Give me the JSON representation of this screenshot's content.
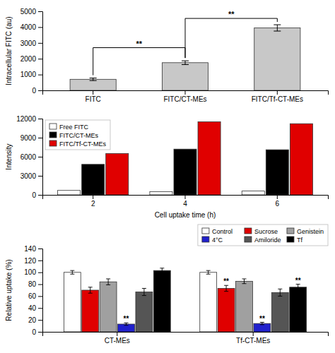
{
  "chart_data": [
    {
      "type": "bar",
      "categories": [
        "FITC",
        "FITC/CT-MEs",
        "FITC/Tf-CT-MEs"
      ],
      "values": [
        700,
        1750,
        3950
      ],
      "errors": [
        80,
        120,
        200
      ],
      "color": "#c8c8c8",
      "ylabel": "Intracellular FITC (au)",
      "ylim": [
        0,
        5000
      ],
      "yticks": [
        0,
        1000,
        2000,
        3000,
        4000,
        5000
      ],
      "grid": false,
      "annotations": [
        {
          "text": "**",
          "from": "FITC",
          "to": "FITC/CT-MEs",
          "y": 2700
        },
        {
          "text": "**",
          "from": "FITC/CT-MEs",
          "to": "FITC/Tf-CT-MEs",
          "y": 4550
        }
      ]
    },
    {
      "type": "bar",
      "categories": [
        "2",
        "4",
        "6"
      ],
      "xlabel": "Cell uptake time (h)",
      "ylabel": "Intensity",
      "series": [
        {
          "name": "Free FITC",
          "color": "#ffffff",
          "values": [
            700,
            500,
            600
          ]
        },
        {
          "name": "FITC/CT-MEs",
          "color": "#000000",
          "values": [
            4800,
            7200,
            7100
          ]
        },
        {
          "name": "FITC/Tf-CT-MEs",
          "color": "#e00000",
          "values": [
            6500,
            11500,
            11200
          ]
        }
      ],
      "ylim": [
        0,
        12000
      ],
      "yticks": [
        0,
        3000,
        6000,
        9000,
        12000
      ],
      "grid": false,
      "legend": "upper left"
    },
    {
      "type": "bar",
      "categories": [
        "CT-MEs",
        "Tf-CT-MEs"
      ],
      "ylabel": "Relative uptake (%)",
      "series": [
        {
          "name": "Control",
          "color": "#ffffff",
          "values": [
            100,
            100
          ],
          "errors": [
            3,
            3
          ]
        },
        {
          "name": "Sucrose",
          "color": "#e00000",
          "values": [
            70,
            73
          ],
          "errors": [
            5,
            5
          ]
        },
        {
          "name": "Genistein",
          "color": "#a0a0a0",
          "values": [
            84,
            85
          ],
          "errors": [
            5,
            4
          ]
        },
        {
          "name": "4°C",
          "color": "#2020cc",
          "values": [
            13,
            14
          ],
          "errors": [
            2,
            2
          ]
        },
        {
          "name": "Amiloride",
          "color": "#555555",
          "values": [
            67,
            66
          ],
          "errors": [
            6,
            6
          ]
        },
        {
          "name": "Tf",
          "color": "#000000",
          "values": [
            103,
            75
          ],
          "errors": [
            4,
            5
          ]
        }
      ],
      "ylim": [
        0,
        140
      ],
      "yticks": [
        0,
        20,
        40,
        60,
        80,
        100,
        120,
        140
      ],
      "grid": false,
      "legend": "upper right",
      "annotations": [
        {
          "text": "**",
          "series": "Sucrose",
          "category": "Tf-CT-MEs"
        },
        {
          "text": "**",
          "series": "4°C",
          "category": "CT-MEs"
        },
        {
          "text": "**",
          "series": "4°C",
          "category": "Tf-CT-MEs"
        },
        {
          "text": "**",
          "series": "Tf",
          "category": "Tf-CT-MEs"
        }
      ]
    }
  ]
}
